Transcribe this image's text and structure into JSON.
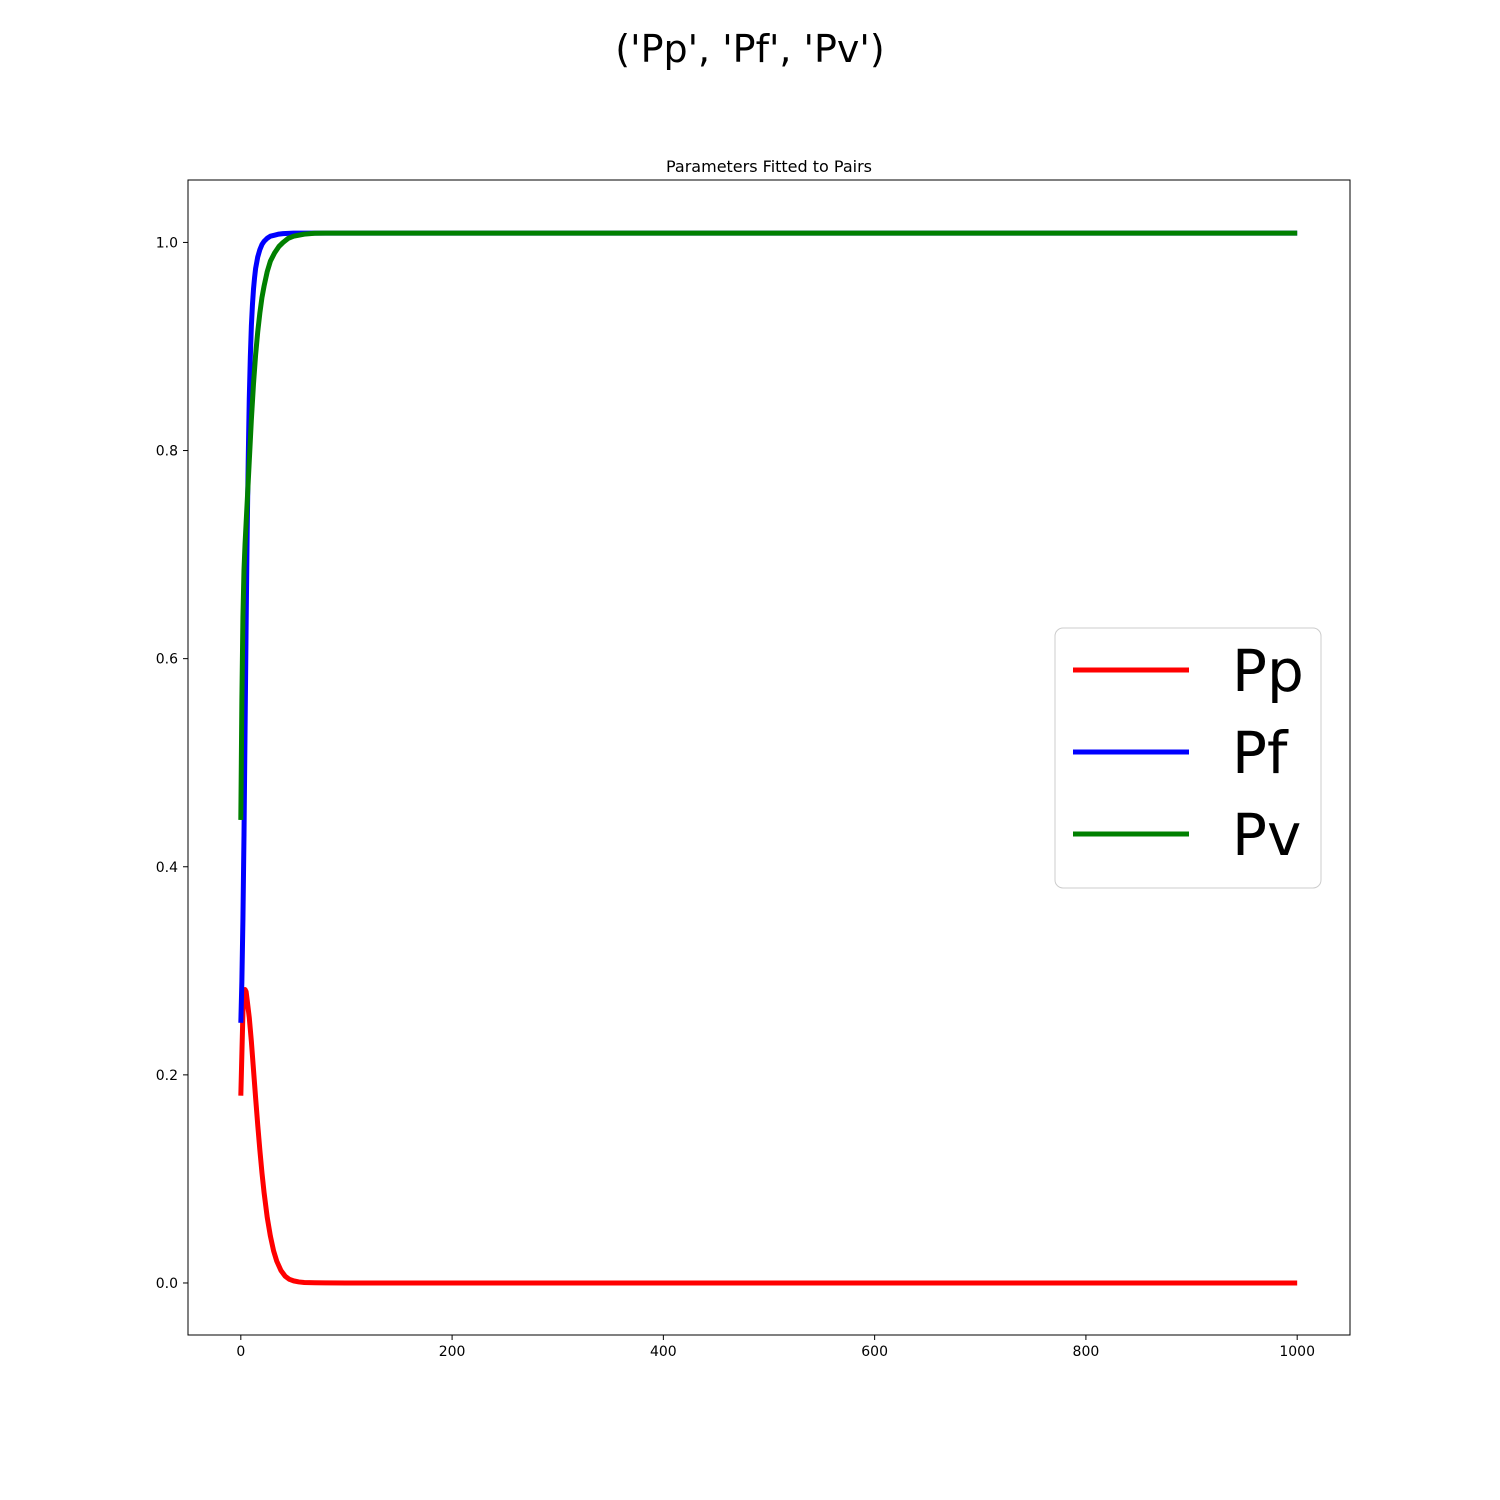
{
  "figure": {
    "suptitle": "('Pp', 'Pf', 'Pv')"
  },
  "chart_data": {
    "type": "line",
    "title": "Parameters Fitted to Pairs",
    "xlabel": "",
    "ylabel": "",
    "xlim": [
      -50,
      1050
    ],
    "ylim": [
      -0.05,
      1.06
    ],
    "xticks": [
      0,
      200,
      400,
      600,
      800,
      1000
    ],
    "yticks": [
      0.0,
      0.2,
      0.4,
      0.6,
      0.8,
      1.0
    ],
    "xtick_labels": [
      "0",
      "200",
      "400",
      "600",
      "800",
      "1000"
    ],
    "ytick_labels": [
      "0.0",
      "0.2",
      "0.4",
      "0.6",
      "0.8",
      "1.0"
    ],
    "grid": false,
    "legend_position": "center-right",
    "series": [
      {
        "name": "Pp",
        "color": "#ff0000",
        "x": [
          0,
          1,
          2,
          3,
          4,
          5,
          6,
          8,
          10,
          12,
          14,
          16,
          18,
          20,
          22,
          25,
          28,
          31,
          34,
          38,
          42,
          46,
          50,
          55,
          60,
          70,
          80,
          100,
          200,
          400,
          600,
          800,
          1000
        ],
        "y": [
          0.18,
          0.22,
          0.26,
          0.278,
          0.282,
          0.28,
          0.272,
          0.255,
          0.232,
          0.205,
          0.178,
          0.152,
          0.128,
          0.106,
          0.087,
          0.063,
          0.045,
          0.031,
          0.021,
          0.012,
          0.0065,
          0.0035,
          0.002,
          0.001,
          0.0005,
          0.0002,
          0.0001,
          0.0,
          0.0,
          0.0,
          0.0,
          0.0,
          0.0
        ]
      },
      {
        "name": "Pf",
        "color": "#0000ff",
        "x": [
          0,
          1,
          2,
          3,
          4,
          5,
          6,
          7,
          8,
          9,
          10,
          11,
          12,
          13,
          14,
          16,
          18,
          20,
          22,
          25,
          28,
          32,
          36,
          40,
          50,
          60,
          80,
          100,
          200,
          400,
          600,
          800,
          1000
        ],
        "y": [
          0.25,
          0.29,
          0.35,
          0.43,
          0.53,
          0.63,
          0.72,
          0.79,
          0.85,
          0.89,
          0.92,
          0.94,
          0.955,
          0.966,
          0.975,
          0.986,
          0.993,
          0.998,
          1.001,
          1.004,
          1.006,
          1.007,
          1.008,
          1.0085,
          1.009,
          1.009,
          1.009,
          1.009,
          1.009,
          1.009,
          1.009,
          1.009,
          1.009
        ]
      },
      {
        "name": "Pv",
        "color": "#008000",
        "x": [
          0,
          1,
          2,
          3,
          4,
          5,
          6,
          8,
          10,
          12,
          14,
          16,
          18,
          20,
          22,
          25,
          28,
          32,
          36,
          40,
          45,
          50,
          60,
          70,
          80,
          100,
          200,
          400,
          600,
          800,
          1000
        ],
        "y": [
          0.445,
          0.56,
          0.64,
          0.685,
          0.71,
          0.73,
          0.75,
          0.79,
          0.83,
          0.864,
          0.892,
          0.914,
          0.932,
          0.947,
          0.958,
          0.972,
          0.982,
          0.99,
          0.996,
          1.0,
          1.004,
          1.006,
          1.008,
          1.0088,
          1.009,
          1.009,
          1.009,
          1.009,
          1.009,
          1.009,
          1.009
        ]
      }
    ]
  }
}
